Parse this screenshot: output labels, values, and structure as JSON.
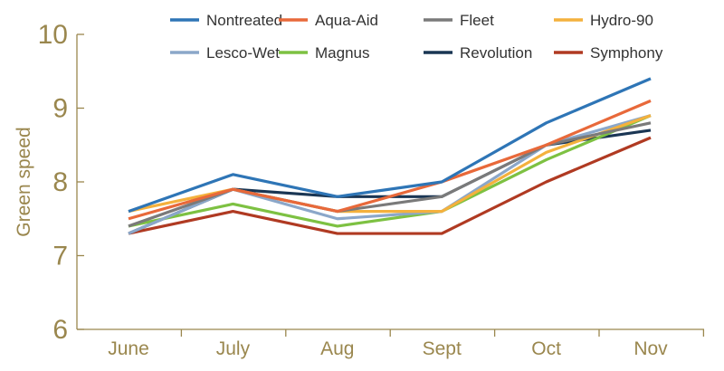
{
  "chart_data": {
    "type": "line",
    "title": "",
    "xlabel": "",
    "ylabel": "Green speed",
    "ylim": [
      6,
      10
    ],
    "yticks": [
      6,
      7,
      8,
      9,
      10
    ],
    "categories": [
      "June",
      "July",
      "Aug",
      "Sept",
      "Oct",
      "Nov"
    ],
    "grid": false,
    "legend": "top",
    "series": [
      {
        "name": "Nontreated",
        "color": "#2e75b6",
        "values": [
          7.6,
          8.1,
          7.8,
          8.0,
          8.8,
          9.4
        ]
      },
      {
        "name": "Aqua-Aid",
        "color": "#e8693a",
        "values": [
          7.5,
          7.9,
          7.6,
          8.0,
          8.5,
          9.1
        ]
      },
      {
        "name": "Fleet",
        "color": "#7a7a7a",
        "values": [
          7.4,
          7.9,
          7.6,
          7.8,
          8.5,
          8.8
        ]
      },
      {
        "name": "Hydro-90",
        "color": "#f4b13d",
        "values": [
          7.6,
          7.9,
          7.6,
          7.6,
          8.4,
          8.9
        ]
      },
      {
        "name": "Lesco-Wet",
        "color": "#8ba7c9",
        "values": [
          7.3,
          7.9,
          7.5,
          7.6,
          8.5,
          8.9
        ]
      },
      {
        "name": "Magnus",
        "color": "#7dc142",
        "values": [
          7.4,
          7.7,
          7.4,
          7.6,
          8.3,
          8.9
        ]
      },
      {
        "name": "Revolution",
        "color": "#1a3654",
        "values": [
          7.3,
          7.9,
          7.8,
          7.8,
          8.5,
          8.7
        ]
      },
      {
        "name": "Symphony",
        "color": "#b03a22",
        "values": [
          7.3,
          7.6,
          7.3,
          7.3,
          8.0,
          8.6
        ]
      }
    ]
  },
  "axis_color": "#9a874e"
}
